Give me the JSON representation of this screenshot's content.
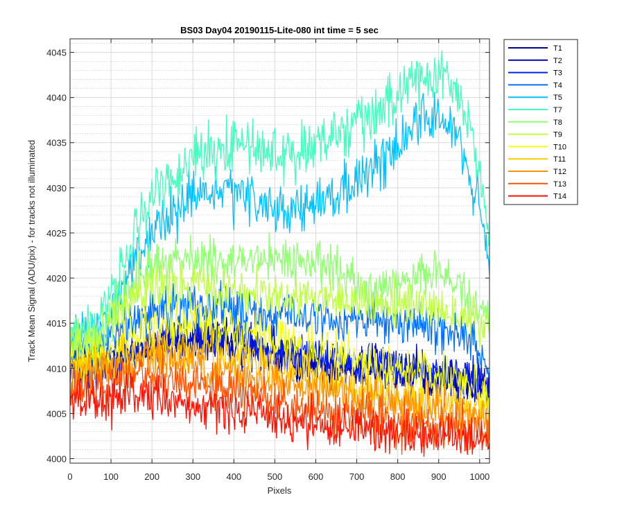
{
  "chart_data": {
    "type": "line",
    "title": "BS03 Day04 20190115-Lite-080 int time = 5 sec",
    "xlabel": "Pixels",
    "ylabel": "Track Mean Signal (ADU/pix) - for tracks not illuminated",
    "xlim": [
      0,
      1024
    ],
    "ylim": [
      3999.5,
      4046.5
    ],
    "x_ticks": [
      0,
      100,
      200,
      300,
      400,
      500,
      600,
      700,
      800,
      900,
      1000
    ],
    "y_ticks": [
      4000,
      4005,
      4010,
      4015,
      4020,
      4025,
      4030,
      4035,
      4040,
      4045
    ],
    "y_minor_step": 1,
    "grid": true,
    "legend_position": "outside-top-right",
    "x_knots": [
      0,
      50,
      100,
      150,
      200,
      250,
      300,
      350,
      400,
      450,
      500,
      550,
      600,
      650,
      700,
      750,
      800,
      850,
      900,
      950,
      1000,
      1024
    ],
    "series": [
      {
        "name": "T1",
        "color": "#00008f",
        "noise": 2.0,
        "values": [
          4010,
          4010,
          4010.5,
          4011.5,
          4012.5,
          4013,
          4013,
          4013,
          4012.5,
          4012,
          4011.5,
          4011,
          4010.5,
          4010.5,
          4010,
          4010,
          4009.5,
          4009.5,
          4009,
          4008.5,
          4008,
          4007.5
        ]
      },
      {
        "name": "T2",
        "color": "#0000bf",
        "noise": 2.0,
        "values": [
          4010,
          4010,
          4010.5,
          4011.5,
          4012.5,
          4013,
          4013,
          4013,
          4012.5,
          4012,
          4011.5,
          4011,
          4010.5,
          4010.5,
          4010,
          4010,
          4009.5,
          4009.5,
          4009,
          4008.5,
          4008,
          4007.5
        ]
      },
      {
        "name": "T3",
        "color": "#0020ef",
        "noise": 2.0,
        "values": [
          4010.5,
          4010.5,
          4011,
          4012,
          4013,
          4013.5,
          4013.5,
          4013.5,
          4013,
          4012.5,
          4012,
          4011.5,
          4011,
          4011,
          4010.5,
          4010.5,
          4010,
          4010,
          4009.5,
          4009,
          4008.5,
          4008
        ]
      },
      {
        "name": "T4",
        "color": "#0070ff",
        "noise": 2.2,
        "values": [
          4012,
          4012.5,
          4013.5,
          4015,
          4016.5,
          4017,
          4017,
          4017,
          4016.5,
          4016,
          4016,
          4016,
          4015.5,
          4015.5,
          4015.5,
          4015,
          4015,
          4015,
          4014.5,
          4014,
          4012,
          4010
        ]
      },
      {
        "name": "T5",
        "color": "#00c0ff",
        "noise": 2.4,
        "values": [
          4013,
          4013.5,
          4016,
          4021,
          4025,
          4027,
          4029,
          4029.5,
          4029,
          4028.5,
          4028,
          4027.5,
          4028,
          4029,
          4030.5,
          4032.5,
          4035,
          4037.5,
          4038,
          4035.5,
          4028,
          4020
        ]
      },
      {
        "name": "T7",
        "color": "#40ffbf",
        "noise": 2.6,
        "values": [
          4014,
          4014.5,
          4018,
          4024,
          4029,
          4031.5,
          4033.5,
          4034.5,
          4034.5,
          4034.5,
          4034,
          4034,
          4034.5,
          4035.5,
          4037,
          4038.5,
          4040.5,
          4042.5,
          4043,
          4040.5,
          4032,
          4025
        ]
      },
      {
        "name": "T8",
        "color": "#90ff70",
        "noise": 2.2,
        "values": [
          4013,
          4013.5,
          4015.5,
          4019.5,
          4021.5,
          4022,
          4022,
          4022,
          4022,
          4022,
          4022,
          4022,
          4022,
          4021.5,
          4019,
          4018.5,
          4019.5,
          4020.5,
          4020.5,
          4019,
          4017,
          4016
        ]
      },
      {
        "name": "T9",
        "color": "#c0ff40",
        "noise": 2.2,
        "values": [
          4012.5,
          4013,
          4015,
          4017.5,
          4019,
          4019,
          4019,
          4018.5,
          4018.5,
          4018.5,
          4018,
          4018,
          4018,
          4017.5,
          4017.5,
          4017,
          4017,
          4017,
          4016.5,
          4016,
          4015,
          4014.5
        ]
      },
      {
        "name": "T10",
        "color": "#f5ff10",
        "noise": 2.2,
        "values": [
          4011,
          4011,
          4012,
          4013.5,
          4014.5,
          4015,
          4015,
          4014.5,
          4014,
          4013.5,
          4013,
          4012.5,
          4012,
          4011.5,
          4011,
          4010.5,
          4010,
          4009.5,
          4009,
          4008.5,
          4007.5,
          4006.5
        ]
      },
      {
        "name": "T11",
        "color": "#ffcc00",
        "noise": 2.2,
        "values": [
          4010,
          4010,
          4010.5,
          4011.5,
          4012,
          4012,
          4012,
          4011.5,
          4011,
          4010.5,
          4010,
          4009.5,
          4009,
          4008.5,
          4008,
          4007.5,
          4007,
          4006.5,
          4006,
          4006,
          4005.5,
          4005
        ]
      },
      {
        "name": "T12",
        "color": "#ff9000",
        "noise": 2.2,
        "values": [
          4009.5,
          4009.5,
          4010,
          4010.5,
          4011,
          4011,
          4010.5,
          4010,
          4009.5,
          4009,
          4008.5,
          4008,
          4007.5,
          4007,
          4006.5,
          4006.5,
          4006,
          4005.5,
          4005.5,
          4005,
          4004.5,
          4004.5
        ]
      },
      {
        "name": "T13",
        "color": "#ff5000",
        "noise": 2.2,
        "values": [
          4008,
          4008,
          4008.5,
          4009,
          4009,
          4009,
          4008.5,
          4008,
          4007.5,
          4007,
          4006.5,
          4006,
          4005.5,
          4005,
          4004.5,
          4004.5,
          4004,
          4004,
          4003.5,
          4003.5,
          4003,
          4003
        ]
      },
      {
        "name": "T14",
        "color": "#ff1000",
        "noise": 2.2,
        "values": [
          4006.5,
          4006.5,
          4006.5,
          4006.5,
          4006.5,
          4006.5,
          4006,
          4005.5,
          4005,
          4005,
          4004.5,
          4004,
          4004,
          4003.5,
          4003.5,
          4003,
          4003,
          4002.5,
          4002.5,
          4002,
          4002,
          4002
        ]
      }
    ]
  }
}
